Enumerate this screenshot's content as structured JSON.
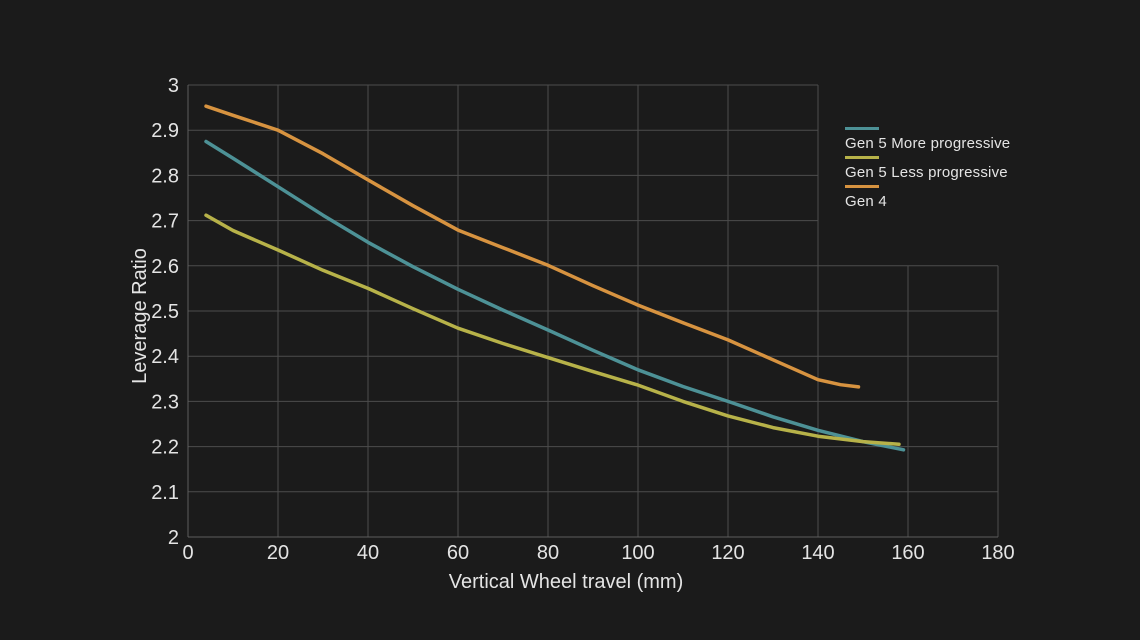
{
  "window": {
    "background": "#1B1B1B"
  },
  "chart_data": {
    "type": "line",
    "title": "",
    "xlabel": "Vertical Wheel travel (mm)",
    "ylabel": "Leverage Ratio",
    "xlim": [
      0,
      180
    ],
    "ylim": [
      2,
      3
    ],
    "x_ticks": [
      0,
      20,
      40,
      60,
      80,
      100,
      120,
      140,
      160,
      180
    ],
    "y_ticks": [
      2,
      2.1,
      2.2,
      2.3,
      2.4,
      2.5,
      2.6,
      2.7,
      2.8,
      2.9,
      3
    ],
    "grid": true,
    "legend_position": "top-right",
    "grid_cutout": {
      "x_from": 140,
      "y_from": 2.6
    },
    "palette": {
      "background": "#1B1B1B",
      "grid": "#4C4C4C",
      "axis": "#5E5E5E",
      "text": "#E4E4E4"
    },
    "series": [
      {
        "name": "Gen 5 More progressive",
        "color": "#4D9196",
        "x": [
          4,
          10,
          20,
          30,
          40,
          50,
          60,
          70,
          80,
          90,
          100,
          110,
          120,
          130,
          140,
          150,
          159
        ],
        "y": [
          2.875,
          2.838,
          2.775,
          2.712,
          2.652,
          2.598,
          2.548,
          2.502,
          2.458,
          2.413,
          2.37,
          2.333,
          2.3,
          2.266,
          2.236,
          2.211,
          2.193
        ]
      },
      {
        "name": "Gen 5 Less progressive",
        "color": "#B7B249",
        "x": [
          4,
          10,
          20,
          30,
          40,
          50,
          60,
          70,
          80,
          90,
          100,
          110,
          120,
          130,
          140,
          150,
          158
        ],
        "y": [
          2.712,
          2.678,
          2.635,
          2.59,
          2.55,
          2.505,
          2.462,
          2.428,
          2.397,
          2.366,
          2.336,
          2.3,
          2.268,
          2.242,
          2.223,
          2.211,
          2.205
        ]
      },
      {
        "name": "Gen 4",
        "color": "#D79340",
        "x": [
          4,
          10,
          20,
          30,
          40,
          50,
          60,
          70,
          80,
          90,
          100,
          110,
          120,
          130,
          140,
          145,
          149
        ],
        "y": [
          2.953,
          2.933,
          2.9,
          2.848,
          2.79,
          2.733,
          2.679,
          2.64,
          2.601,
          2.556,
          2.513,
          2.474,
          2.436,
          2.392,
          2.348,
          2.337,
          2.332
        ]
      }
    ]
  }
}
